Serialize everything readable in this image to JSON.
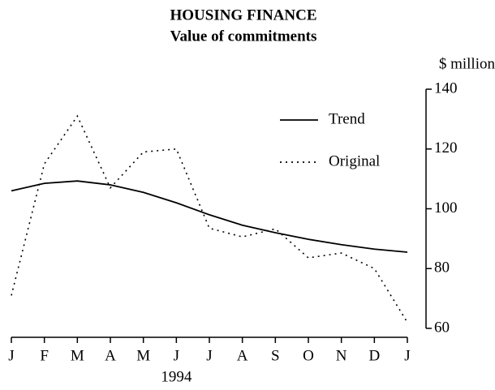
{
  "chart_data": {
    "type": "line",
    "title": "HOUSING FINANCE",
    "subtitle": "Value of commitments",
    "y_axis_label": "$ million",
    "annotation": "1994",
    "categories": [
      "J",
      "F",
      "M",
      "A",
      "M",
      "J",
      "J",
      "A",
      "S",
      "O",
      "N",
      "D",
      "J"
    ],
    "series": [
      {
        "name": "Trend",
        "color": "#000000",
        "style": "solid",
        "values": [
          106,
          108.5,
          109.3,
          108,
          105.5,
          102,
          98,
          94.5,
          92,
          89.8,
          88,
          86.5,
          85.5
        ]
      },
      {
        "name": "Original",
        "color": "#000000",
        "style": "dotted",
        "values": [
          71,
          115,
          131,
          107,
          119,
          120,
          93.5,
          90.6,
          93.3,
          83.6,
          85.2,
          80,
          62
        ]
      }
    ],
    "ylim": [
      60,
      140
    ],
    "yticks": [
      60,
      80,
      100,
      120,
      140
    ],
    "y_axis_side": "right",
    "legend": "upper right",
    "grid": false
  }
}
